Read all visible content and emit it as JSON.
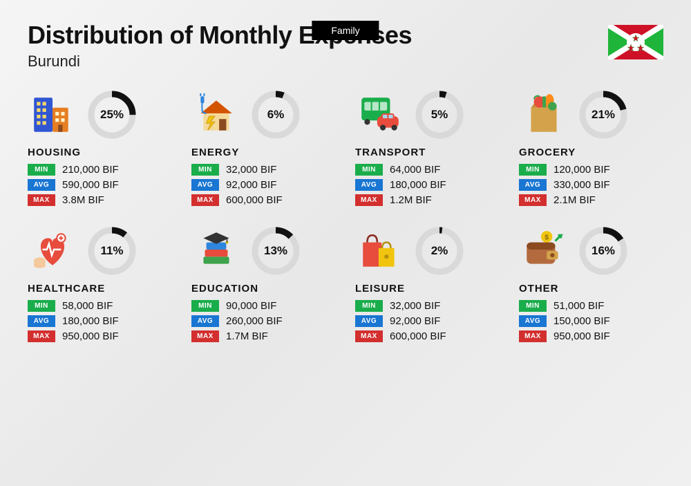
{
  "tab": "Family",
  "title": "Distribution of Monthly Expenses",
  "country": "Burundi",
  "flag": {
    "bg": "#ffffff",
    "green": "#1eb53a",
    "red": "#ce1126"
  },
  "labels": {
    "min": "MIN",
    "avg": "AVG",
    "max": "MAX"
  },
  "label_colors": {
    "min": "#1aad4b",
    "avg": "#1976d2",
    "max": "#d32f2f"
  },
  "donut": {
    "radius": 30,
    "stroke_width": 9,
    "track_color": "#d9d9d9",
    "fill_color": "#111111",
    "pct_fontsize": 17,
    "pct_fontweight": 800
  },
  "background": {
    "gradient": [
      "#f5f5f5",
      "#e8e8e8",
      "#f0f0f0"
    ]
  },
  "typography": {
    "title_fontsize": 36,
    "title_fontweight": 800,
    "country_fontsize": 22,
    "category_fontsize": 15,
    "category_fontweight": 800,
    "value_fontsize": 15,
    "label_fontsize": 10
  },
  "categories": [
    {
      "key": "housing",
      "name": "HOUSING",
      "pct": 25,
      "min": "210,000 BIF",
      "avg": "590,000 BIF",
      "max": "3.8M BIF",
      "icon": "buildings"
    },
    {
      "key": "energy",
      "name": "ENERGY",
      "pct": 6,
      "min": "32,000 BIF",
      "avg": "92,000 BIF",
      "max": "600,000 BIF",
      "icon": "energy-house"
    },
    {
      "key": "transport",
      "name": "TRANSPORT",
      "pct": 5,
      "min": "64,000 BIF",
      "avg": "180,000 BIF",
      "max": "1.2M BIF",
      "icon": "bus-car"
    },
    {
      "key": "grocery",
      "name": "GROCERY",
      "pct": 21,
      "min": "120,000 BIF",
      "avg": "330,000 BIF",
      "max": "2.1M BIF",
      "icon": "grocery-bag"
    },
    {
      "key": "healthcare",
      "name": "HEALTHCARE",
      "pct": 11,
      "min": "58,000 BIF",
      "avg": "180,000 BIF",
      "max": "950,000 BIF",
      "icon": "healthcare-heart"
    },
    {
      "key": "education",
      "name": "EDUCATION",
      "pct": 13,
      "min": "90,000 BIF",
      "avg": "260,000 BIF",
      "max": "1.7M BIF",
      "icon": "graduation-books"
    },
    {
      "key": "leisure",
      "name": "LEISURE",
      "pct": 2,
      "min": "32,000 BIF",
      "avg": "92,000 BIF",
      "max": "600,000 BIF",
      "icon": "shopping-bags"
    },
    {
      "key": "other",
      "name": "OTHER",
      "pct": 16,
      "min": "51,000 BIF",
      "avg": "150,000 BIF",
      "max": "950,000 BIF",
      "icon": "wallet"
    }
  ]
}
